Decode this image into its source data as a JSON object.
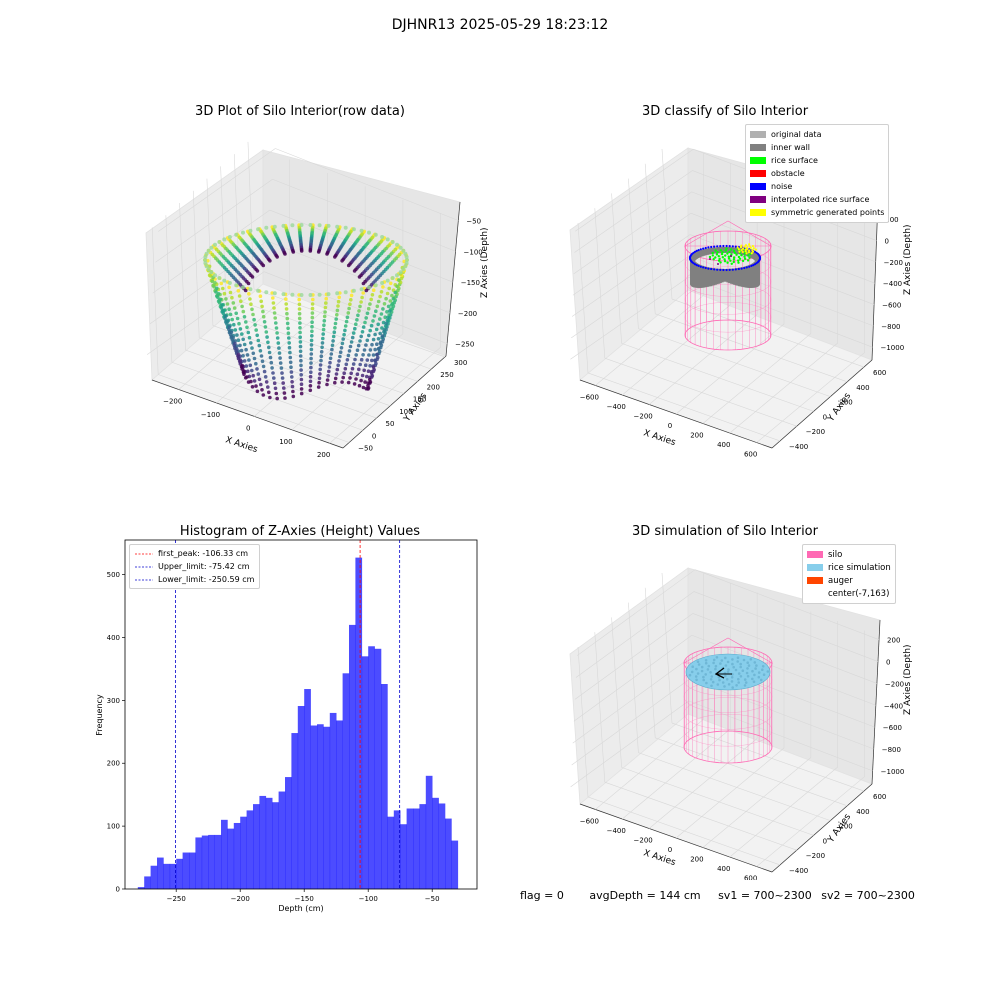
{
  "suptitle": "DJHNR13 2025-05-29 18:23:12",
  "footer": {
    "flag": "flag = 0",
    "avg_depth": "avgDepth = 144 cm",
    "sv1": "sv1 = 700~2300",
    "sv2": "sv2 = 700~2300"
  },
  "colors": {
    "bar": "#0000ff",
    "silo": "#ff69b4",
    "rice_sim": "#87ceeb",
    "auger": "#ff4500",
    "peak_line": "#ff0000",
    "limit_line": "#0000cc"
  },
  "chart_data": [
    {
      "type": "scatter",
      "title": "3D Plot of Silo Interior(row data)",
      "xlabel": "X Axies",
      "ylabel": "Y Axies",
      "zlabel": "Z Axies (Depth)",
      "xticks": [
        "−200",
        "−100",
        "0",
        "100",
        "200"
      ],
      "yticks": [
        "−50",
        "0",
        "50",
        "100",
        "150",
        "200",
        "250",
        "300"
      ],
      "zticks": [
        "−50",
        "−100",
        "−150",
        "−200",
        "−250"
      ],
      "xlim": [
        -250,
        220
      ],
      "ylim": [
        -70,
        310
      ],
      "zlim": [
        -285,
        -30
      ],
      "colormap": "viridis"
    },
    {
      "type": "scatter",
      "title": "3D classify of Silo Interior",
      "xlabel": "X Axies",
      "ylabel": "Y Axies",
      "zlabel": "Z Axies (Depth)",
      "xticks": [
        "−600",
        "−400",
        "−200",
        "0",
        "200",
        "400",
        "600"
      ],
      "yticks": [
        "−400",
        "−200",
        "0",
        "200",
        "400",
        "600"
      ],
      "zticks": [
        "200",
        "0",
        "−200",
        "−400",
        "−600",
        "−800",
        "−1000"
      ],
      "legend": [
        {
          "label": "original data",
          "color": "#b0b0b0"
        },
        {
          "label": "inner wall",
          "color": "#808080"
        },
        {
          "label": "rice surface",
          "color": "#00ff00"
        },
        {
          "label": "obstacle",
          "color": "#ff0000"
        },
        {
          "label": "noise",
          "color": "#0000ff"
        },
        {
          "label": "interpolated rice surface",
          "color": "#800080"
        },
        {
          "label": "symmetric generated points",
          "color": "#ffff00"
        }
      ],
      "legend_position": "top-right"
    },
    {
      "type": "bar",
      "title": "Histogram of Z-Axies (Height) Values",
      "xlabel": "Depth (cm)",
      "ylabel": "Frequency",
      "xlim": [
        -290,
        -15
      ],
      "ylim": [
        0,
        555
      ],
      "xticks": [
        -250,
        -200,
        -150,
        -100,
        -50
      ],
      "yticks": [
        0,
        100,
        200,
        300,
        400,
        500
      ],
      "bin_start": -280,
      "bin_width": 5,
      "values": [
        3,
        20,
        37,
        50,
        40,
        40,
        48,
        58,
        58,
        82,
        85,
        86,
        86,
        110,
        96,
        105,
        115,
        125,
        135,
        148,
        145,
        138,
        155,
        178,
        248,
        291,
        318,
        260,
        262,
        258,
        280,
        268,
        343,
        420,
        527,
        370,
        386,
        382,
        326,
        115,
        125,
        103,
        128,
        128,
        135,
        180,
        145,
        136,
        112,
        77
      ],
      "lines": [
        {
          "label": "first_peak: -106.33 cm",
          "x": -106.33,
          "color": "#ff0000"
        },
        {
          "label": "Upper_limit: -75.42 cm",
          "x": -75.42,
          "color": "#0000cc"
        },
        {
          "label": "Lower_limit: -250.59 cm",
          "x": -250.59,
          "color": "#0000cc"
        }
      ],
      "legend_position": "top-left"
    },
    {
      "type": "scatter",
      "title": "3D simulation of Silo Interior",
      "xlabel": "X Axies",
      "ylabel": "Y Axies",
      "zlabel": "Z Axies (Depth)",
      "xticks": [
        "−600",
        "−400",
        "−200",
        "0",
        "200",
        "400",
        "600"
      ],
      "yticks": [
        "−400",
        "−200",
        "0",
        "200",
        "400",
        "600"
      ],
      "zticks": [
        "200",
        "0",
        "−200",
        "−400",
        "−600",
        "−800",
        "−1000"
      ],
      "legend": [
        {
          "label": "silo",
          "color": "#ff69b4"
        },
        {
          "label": "rice simulation",
          "color": "#87ceeb"
        },
        {
          "label": "auger",
          "color": "#ff4500"
        },
        {
          "label": "center(-7,163)",
          "color": ""
        }
      ],
      "legend_position": "top-right"
    }
  ]
}
